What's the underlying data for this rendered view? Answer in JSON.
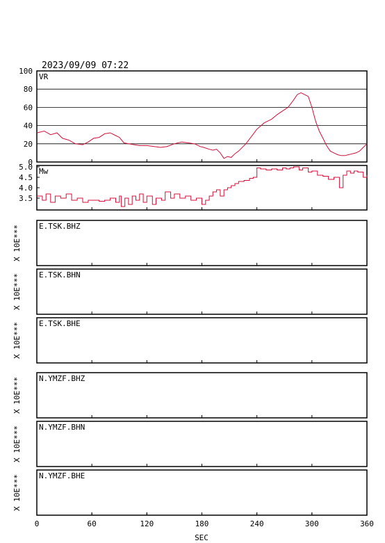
{
  "chart_data": [
    {
      "type": "line",
      "title": "2023/09/09 07:22",
      "panel_label": "VR",
      "xlabel": "SEC",
      "xlim": [
        0,
        360
      ],
      "ylim": [
        0,
        100
      ],
      "yticks": [
        "0",
        "20",
        "40",
        "60",
        "80",
        "100"
      ],
      "grid": true,
      "color": "#d0103a",
      "x": [
        0,
        8,
        15,
        22,
        28,
        35,
        42,
        50,
        56,
        62,
        68,
        74,
        80,
        86,
        90,
        95,
        100,
        106,
        112,
        120,
        128,
        135,
        142,
        150,
        158,
        165,
        172,
        178,
        182,
        188,
        192,
        196,
        200,
        204,
        208,
        212,
        216,
        220,
        228,
        234,
        240,
        248,
        256,
        262,
        268,
        274,
        280,
        284,
        288,
        292,
        296,
        300,
        304,
        308,
        312,
        316,
        320,
        324,
        328,
        332,
        336,
        340,
        344,
        348,
        352,
        356,
        360
      ],
      "values": [
        32,
        34,
        30,
        32,
        26,
        24,
        20,
        19,
        22,
        26,
        27,
        31,
        32,
        29,
        27,
        21,
        20,
        19,
        18,
        18,
        17,
        16,
        17,
        20,
        22,
        21,
        20,
        17,
        16,
        14,
        13,
        14,
        10,
        4,
        6,
        5,
        9,
        12,
        20,
        28,
        36,
        43,
        47,
        52,
        56,
        60,
        68,
        74,
        76,
        74,
        72,
        60,
        45,
        34,
        26,
        18,
        12,
        10,
        8,
        7,
        7,
        8,
        9,
        10,
        12,
        16,
        20
      ]
    },
    {
      "type": "line",
      "panel_label": "Mw",
      "xlabel": "SEC",
      "xlim": [
        0,
        360
      ],
      "ylim": [
        3.0,
        5.0
      ],
      "yticks": [
        "3.5",
        "4.0",
        "4.5",
        "5.0"
      ],
      "grid": false,
      "color": "#d0103a",
      "x": [
        0,
        6,
        10,
        15,
        20,
        26,
        32,
        38,
        44,
        50,
        56,
        62,
        68,
        74,
        80,
        86,
        90,
        92,
        96,
        100,
        104,
        108,
        112,
        116,
        120,
        126,
        130,
        136,
        140,
        146,
        150,
        156,
        162,
        168,
        174,
        180,
        184,
        188,
        192,
        196,
        200,
        204,
        208,
        212,
        216,
        220,
        226,
        232,
        236,
        240,
        244,
        250,
        256,
        262,
        268,
        272,
        276,
        280,
        286,
        290,
        296,
        300,
        306,
        312,
        318,
        324,
        330,
        334,
        338,
        342,
        346,
        350,
        356,
        360
      ],
      "values": [
        3.6,
        3.4,
        3.7,
        3.3,
        3.6,
        3.5,
        3.7,
        3.4,
        3.5,
        3.3,
        3.4,
        3.4,
        3.35,
        3.4,
        3.5,
        3.3,
        3.6,
        3.1,
        3.5,
        3.2,
        3.6,
        3.4,
        3.7,
        3.3,
        3.6,
        3.2,
        3.5,
        3.4,
        3.8,
        3.5,
        3.7,
        3.5,
        3.6,
        3.4,
        3.5,
        3.2,
        3.4,
        3.6,
        3.8,
        3.9,
        3.6,
        3.9,
        4.0,
        4.1,
        4.2,
        4.3,
        4.35,
        4.45,
        4.5,
        4.95,
        4.9,
        4.85,
        4.9,
        4.85,
        4.95,
        4.9,
        4.95,
        5.0,
        4.85,
        4.95,
        4.75,
        4.8,
        4.6,
        4.55,
        4.4,
        4.5,
        4.0,
        4.6,
        4.8,
        4.7,
        4.8,
        4.75,
        4.5,
        4.6
      ]
    }
  ],
  "xticks": [
    "0",
    "60",
    "120",
    "180",
    "240",
    "300",
    "360"
  ],
  "channels": [
    {
      "label": "E.TSK.BHZ",
      "scale": "X 10E***"
    },
    {
      "label": "E.TSK.BHN",
      "scale": "X 10E***"
    },
    {
      "label": "E.TSK.BHE",
      "scale": "X 10E***"
    },
    {
      "label": "N.YMZF.BHZ",
      "scale": "X 10E***"
    },
    {
      "label": "N.YMZF.BHN",
      "scale": "X 10E***"
    },
    {
      "label": "N.YMZF.BHE",
      "scale": "X 10E***"
    }
  ]
}
